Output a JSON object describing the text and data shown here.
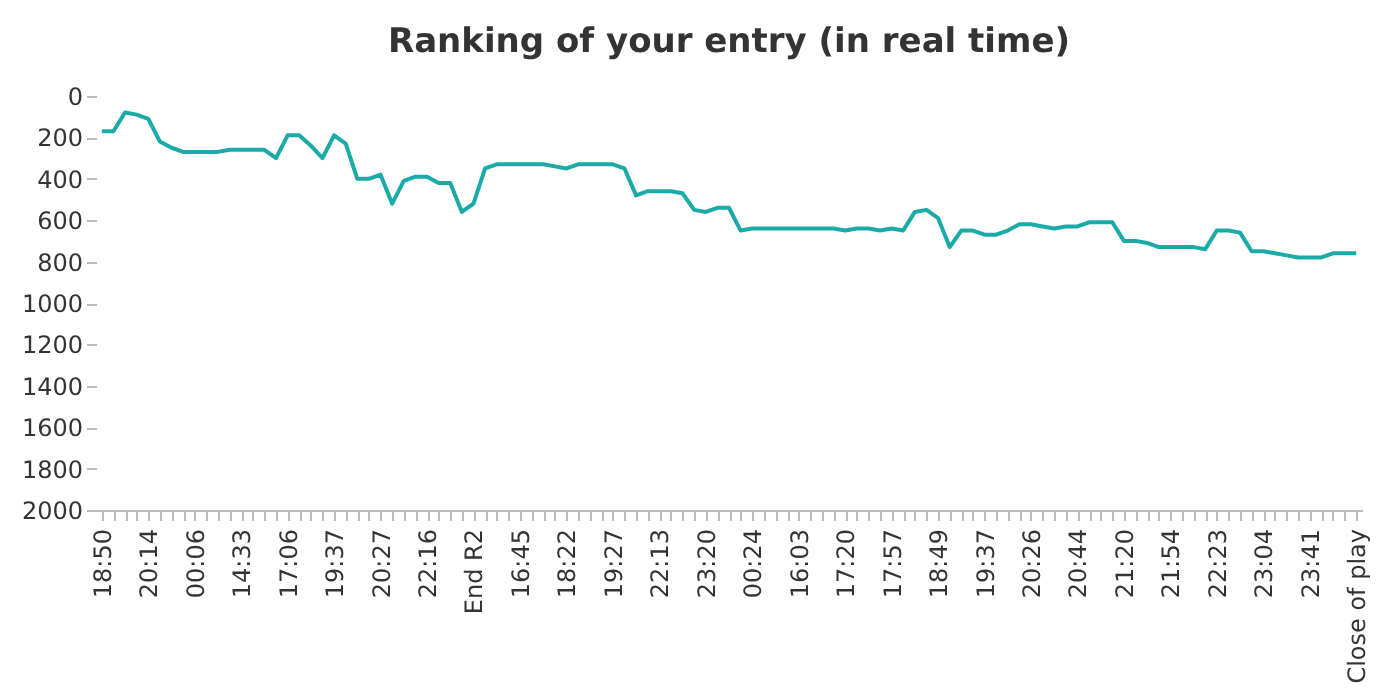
{
  "chart_data": {
    "type": "line",
    "title": "Ranking of your entry (in real time)",
    "categories": [
      "18:50",
      null,
      null,
      null,
      "20:14",
      null,
      null,
      null,
      "00:06",
      null,
      null,
      null,
      "14:33",
      null,
      null,
      null,
      "17:06",
      null,
      null,
      null,
      "19:37",
      null,
      null,
      null,
      "20:27",
      null,
      null,
      null,
      "22:16",
      null,
      null,
      null,
      "End R2",
      null,
      null,
      null,
      "16:45",
      null,
      null,
      null,
      "18:22",
      null,
      null,
      null,
      "19:27",
      null,
      null,
      null,
      "22:13",
      null,
      null,
      null,
      "23:20",
      null,
      null,
      null,
      "00:24",
      null,
      null,
      null,
      "16:03",
      null,
      null,
      null,
      "17:20",
      null,
      null,
      null,
      "17:57",
      null,
      null,
      null,
      "18:49",
      null,
      null,
      null,
      "19:37",
      null,
      null,
      null,
      "20:26",
      null,
      null,
      null,
      "20:44",
      null,
      null,
      null,
      "21:20",
      null,
      null,
      null,
      "21:54",
      null,
      null,
      null,
      "22:23",
      null,
      null,
      null,
      "23:04",
      null,
      null,
      null,
      "23:41",
      null,
      null,
      null,
      "Close of play"
    ],
    "series": [
      {
        "color": "#1aaba8",
        "values": [
          170,
          170,
          80,
          90,
          110,
          220,
          250,
          270,
          270,
          270,
          270,
          260,
          260,
          260,
          260,
          300,
          190,
          190,
          240,
          300,
          190,
          230,
          400,
          400,
          380,
          520,
          410,
          390,
          390,
          420,
          420,
          560,
          520,
          350,
          330,
          330,
          330,
          330,
          330,
          340,
          350,
          330,
          330,
          330,
          330,
          350,
          480,
          460,
          460,
          460,
          470,
          550,
          560,
          540,
          540,
          650,
          640,
          640,
          640,
          640,
          640,
          640,
          640,
          640,
          650,
          640,
          640,
          650,
          640,
          650,
          560,
          550,
          590,
          730,
          650,
          650,
          670,
          670,
          650,
          620,
          620,
          630,
          640,
          630,
          630,
          610,
          610,
          610,
          700,
          700,
          710,
          730,
          730,
          730,
          730,
          740,
          650,
          650,
          660,
          750,
          750,
          760,
          770,
          780,
          780,
          780,
          760,
          760,
          760
        ]
      }
    ],
    "ylim": [
      2000,
      0
    ],
    "yticks": [
      0,
      200,
      400,
      600,
      800,
      1000,
      1200,
      1400,
      1600,
      1800,
      2000
    ],
    "grid": false,
    "legend": false,
    "line_style": "solid",
    "marker": "none"
  }
}
